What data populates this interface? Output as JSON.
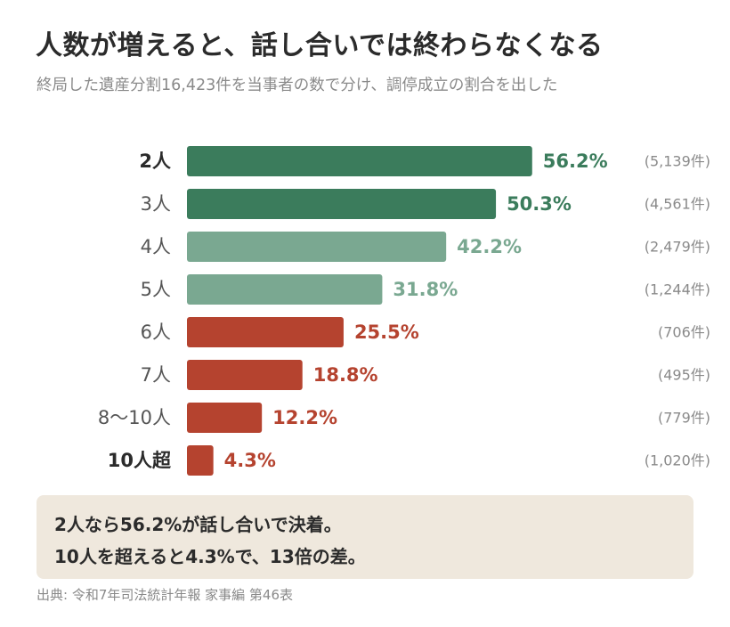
{
  "title": "人数が増えると、話し合いでは終わらなくなる",
  "subtitle": "終局した遺産分割16,423件を当事者の数で分け、調停成立の割合を出した",
  "chart_data": {
    "type": "bar",
    "orientation": "horizontal",
    "xlim": [
      0,
      100
    ],
    "grid": false,
    "categories": [
      "2人",
      "3人",
      "4人",
      "5人",
      "6人",
      "7人",
      "8〜10人",
      "10人超"
    ],
    "values": [
      56.2,
      50.3,
      42.2,
      31.8,
      25.5,
      18.8,
      12.2,
      4.3
    ],
    "value_labels": [
      "56.2%",
      "50.3%",
      "42.2%",
      "31.8%",
      "25.5%",
      "18.8%",
      "12.2%",
      "4.3%"
    ],
    "counts": [
      "(5,139件)",
      "(4,561件)",
      "(2,479件)",
      "(1,244件)",
      "(706件)",
      "(495件)",
      "(779件)",
      "(1,020件)"
    ],
    "colors": [
      "#3b7c5c",
      "#3b7c5c",
      "#7aa891",
      "#7aa891",
      "#b5432f",
      "#b5432f",
      "#b5432f",
      "#b5432f"
    ],
    "bold_categories": [
      "2人",
      "10人超"
    ]
  },
  "callout": {
    "line1": "2人なら56.2%が話し合いで決着。",
    "line2": "10人を超えると4.3%で、13倍の差。"
  },
  "source": "出典: 令和7年司法統計年報 家事編 第46表"
}
